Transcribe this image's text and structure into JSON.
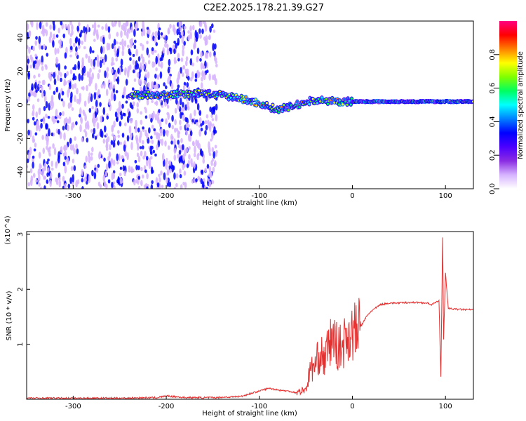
{
  "title": "C2E2.2025.178.21.39.G27",
  "chart_data": [
    {
      "type": "heatmap",
      "xlabel": "Height of straight line (km)",
      "ylabel": "Frequency (Hz)",
      "xlim": [
        -350,
        130
      ],
      "ylim": [
        -50,
        50
      ],
      "xticks": [
        -300,
        -200,
        -100,
        0,
        100
      ],
      "yticks": [
        -40,
        -20,
        0,
        20,
        40
      ],
      "colorbar": {
        "label": "Normalized spectral amplitude",
        "range": [
          0,
          1
        ],
        "ticks": [
          0.0,
          0.2,
          0.4,
          0.6,
          0.8
        ],
        "colors": [
          "#ffffff",
          "#d6b3ff",
          "#8a2be2",
          "#4b00ff",
          "#0000ff",
          "#0080ff",
          "#00ffff",
          "#00ff60",
          "#80ff00",
          "#ffff00",
          "#ff8000",
          "#ff0000",
          "#ff0080"
        ]
      },
      "features": [
        {
          "name": "noise",
          "x_range": [
            -350,
            -145
          ],
          "amplitude": 0.2
        },
        {
          "name": "signal",
          "points": [
            [
              -240,
              6
            ],
            [
              -200,
              6
            ],
            [
              -160,
              7
            ],
            [
              -130,
              5
            ],
            [
              -100,
              1
            ],
            [
              -80,
              -3
            ],
            [
              -60,
              0
            ],
            [
              -40,
              3
            ],
            [
              -20,
              2
            ],
            [
              0,
              2
            ],
            [
              50,
              2
            ],
            [
              100,
              2
            ],
            [
              130,
              2
            ]
          ],
          "amplitude": 0.75
        }
      ]
    },
    {
      "type": "line",
      "xlabel": "Height of straight line (km)",
      "ylabel": "SNR (10 * v/v)",
      "y_multiplier": "(x10^4)",
      "xlim": [
        -350,
        130
      ],
      "ylim": [
        0,
        3.05
      ],
      "xticks": [
        -300,
        -200,
        -100,
        0,
        100
      ],
      "yticks": [
        1,
        2,
        3
      ],
      "series": [
        {
          "color": "#e53030",
          "x": [
            -350,
            -300,
            -250,
            -210,
            -200,
            -180,
            -150,
            -120,
            -100,
            -90,
            -80,
            -70,
            -60,
            -50,
            -45,
            -40,
            -35,
            -30,
            -25,
            -20,
            -15,
            -10,
            -5,
            0,
            5,
            10,
            15,
            20,
            30,
            40,
            50,
            60,
            70,
            80,
            85,
            90,
            93,
            95,
            97,
            98,
            100,
            103,
            110,
            120,
            130
          ],
          "y": [
            0.02,
            0.02,
            0.02,
            0.03,
            0.06,
            0.03,
            0.03,
            0.05,
            0.15,
            0.2,
            0.17,
            0.15,
            0.12,
            0.18,
            0.55,
            0.6,
            0.85,
            0.7,
            1.0,
            1.1,
            0.9,
            1.0,
            1.2,
            1.2,
            1.25,
            1.35,
            1.5,
            1.6,
            1.72,
            1.75,
            1.75,
            1.76,
            1.76,
            1.75,
            1.72,
            1.76,
            1.8,
            0.4,
            2.95,
            1.1,
            2.3,
            1.65,
            1.64,
            1.63,
            1.63
          ]
        }
      ]
    }
  ]
}
